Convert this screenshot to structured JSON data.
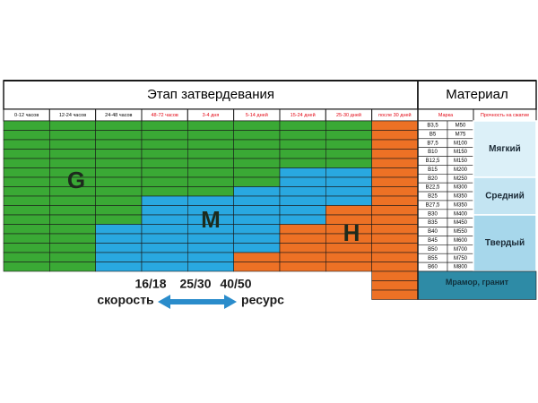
{
  "stages": {
    "title": "Этап затвердевания",
    "columns": [
      {
        "label": "0-12 часов",
        "label_color": "#000000",
        "segments": [
          {
            "color": "#3aa935",
            "rows": 16
          }
        ]
      },
      {
        "label": "12-24 часов",
        "label_color": "#000000",
        "segments": [
          {
            "color": "#3aa935",
            "rows": 16
          }
        ]
      },
      {
        "label": "24-48 часов",
        "label_color": "#000000",
        "segments": [
          {
            "color": "#3aa935",
            "rows": 11
          },
          {
            "color": "#29a8e0",
            "rows": 5
          }
        ]
      },
      {
        "label": "48-72 часов",
        "label_color": "#e30613",
        "segments": [
          {
            "color": "#3aa935",
            "rows": 8
          },
          {
            "color": "#29a8e0",
            "rows": 8
          }
        ]
      },
      {
        "label": "3-4 дня",
        "label_color": "#e30613",
        "segments": [
          {
            "color": "#3aa935",
            "rows": 8
          },
          {
            "color": "#29a8e0",
            "rows": 8
          }
        ]
      },
      {
        "label": "5-14 дней",
        "label_color": "#e30613",
        "segments": [
          {
            "color": "#3aa935",
            "rows": 7
          },
          {
            "color": "#29a8e0",
            "rows": 7
          },
          {
            "color": "#ed7125",
            "rows": 2
          }
        ]
      },
      {
        "label": "15-24 дней",
        "label_color": "#e30613",
        "segments": [
          {
            "color": "#3aa935",
            "rows": 5
          },
          {
            "color": "#29a8e0",
            "rows": 6
          },
          {
            "color": "#ed7125",
            "rows": 5
          }
        ]
      },
      {
        "label": "25-30 дней",
        "label_color": "#e30613",
        "segments": [
          {
            "color": "#3aa935",
            "rows": 5
          },
          {
            "color": "#29a8e0",
            "rows": 4
          },
          {
            "color": "#ed7125",
            "rows": 7
          }
        ]
      },
      {
        "label": "после 30 дней",
        "label_color": "#e30613",
        "segments": [
          {
            "color": "#ed7125",
            "rows": 19
          }
        ]
      }
    ],
    "zones": [
      "G",
      "M",
      "H"
    ]
  },
  "material": {
    "title": "Материал",
    "headers": [
      "Марка",
      "Прочность на сжатие"
    ],
    "header_color": "#e30613",
    "rows": [
      [
        "B3,5",
        "M50"
      ],
      [
        "B5",
        "M75"
      ],
      [
        "B7,5",
        "M100"
      ],
      [
        "B10",
        "M150"
      ],
      [
        "B12,5",
        "M150"
      ],
      [
        "B15",
        "M200"
      ],
      [
        "B20",
        "M250"
      ],
      [
        "B22,5",
        "M300"
      ],
      [
        "B25",
        "M350"
      ],
      [
        "B27,5",
        "M350"
      ],
      [
        "B30",
        "M400"
      ],
      [
        "B35",
        "M450"
      ],
      [
        "B40",
        "M550"
      ],
      [
        "B45",
        "M600"
      ],
      [
        "B50",
        "M700"
      ],
      [
        "B55",
        "M750"
      ],
      [
        "B60",
        "M800"
      ]
    ],
    "groups": [
      {
        "label": "Мягкий",
        "rows": 6,
        "color": "#dcf0f8"
      },
      {
        "label": "Средний",
        "rows": 4,
        "color": "#c3e4f2"
      },
      {
        "label": "Твердый",
        "rows": 6,
        "color": "#a7d7eb"
      }
    ],
    "extra": {
      "label": "Мрамор, гранит",
      "color": "#2e8ba6"
    }
  },
  "legend": {
    "classes": [
      "16/18",
      "25/30",
      "40/50"
    ],
    "left": "скорость",
    "right": "ресурс",
    "arrow_color": "#2a8ccb"
  }
}
